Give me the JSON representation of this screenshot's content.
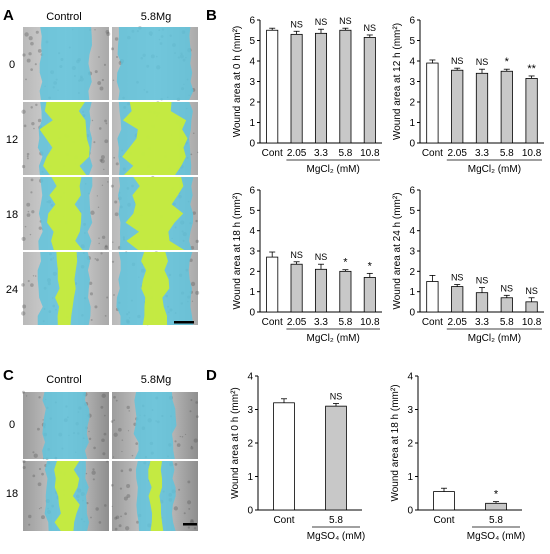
{
  "panels": {
    "A": {
      "letter": "A",
      "columns": [
        "Control",
        "5.8Mg"
      ],
      "rows": [
        "0",
        "12",
        "18",
        "24"
      ]
    },
    "B": {
      "letter": "B"
    },
    "C": {
      "letter": "C",
      "columns": [
        "Control",
        "5.8Mg"
      ],
      "rows": [
        "0",
        "18"
      ]
    },
    "D": {
      "letter": "D"
    }
  },
  "colors": {
    "gap_fill": "#5fc3dc",
    "closed_fill": "#c8ec3a",
    "control_bar": "#ffffff",
    "treated_bar": "#c8c8c8"
  },
  "chart_data": [
    {
      "id": "B1",
      "type": "bar",
      "ylabel": "Wound area at 0 h (mm²)",
      "ylim": [
        0,
        6
      ],
      "yticks": [
        0,
        1,
        2,
        3,
        4,
        5,
        6
      ],
      "categories": [
        "Cont",
        "2.05",
        "3.3",
        "5.8",
        "10.8"
      ],
      "values": [
        5.5,
        5.3,
        5.35,
        5.5,
        5.15
      ],
      "errors": [
        0.1,
        0.15,
        0.2,
        0.1,
        0.12
      ],
      "sig": [
        "",
        "NS",
        "NS",
        "NS",
        "NS"
      ],
      "group_label": "MgCl₂ (mM)"
    },
    {
      "id": "B2",
      "type": "bar",
      "ylabel": "Wound area at 12 h (mm²)",
      "ylim": [
        0,
        6
      ],
      "yticks": [
        0,
        1,
        2,
        3,
        4,
        5,
        6
      ],
      "categories": [
        "Cont",
        "2.05",
        "3.3",
        "5.8",
        "10.8"
      ],
      "values": [
        3.9,
        3.55,
        3.4,
        3.5,
        3.15
      ],
      "errors": [
        0.15,
        0.1,
        0.2,
        0.1,
        0.12
      ],
      "sig": [
        "",
        "NS",
        "NS",
        "*",
        "**"
      ],
      "group_label": "MgCl₂ (mM)"
    },
    {
      "id": "B3",
      "type": "bar",
      "ylabel": "Wound area at 18 h (mm²)",
      "ylim": [
        0,
        6
      ],
      "yticks": [
        0,
        1,
        2,
        3,
        4,
        5,
        6
      ],
      "categories": [
        "Cont",
        "2.05",
        "3.3",
        "5.8",
        "10.8"
      ],
      "values": [
        2.7,
        2.35,
        2.1,
        2.0,
        1.7
      ],
      "errors": [
        0.25,
        0.12,
        0.25,
        0.08,
        0.2
      ],
      "sig": [
        "",
        "NS",
        "NS",
        "*",
        "*"
      ],
      "group_label": "MgCl₂ (mM)"
    },
    {
      "id": "B4",
      "type": "bar",
      "ylabel": "Wound area at 24 h (mm²)",
      "ylim": [
        0,
        6
      ],
      "yticks": [
        0,
        1,
        2,
        3,
        4,
        5,
        6
      ],
      "categories": [
        "Cont",
        "2.05",
        "3.3",
        "5.8",
        "10.8"
      ],
      "values": [
        1.5,
        1.25,
        0.95,
        0.7,
        0.5
      ],
      "errors": [
        0.3,
        0.1,
        0.25,
        0.12,
        0.2
      ],
      "sig": [
        "",
        "NS",
        "NS",
        "NS",
        "NS"
      ],
      "group_label": "MgCl₂ (mM)"
    },
    {
      "id": "D1",
      "type": "bar",
      "ylabel": "Wound area at 0 h (mm²)",
      "ylim": [
        0,
        4
      ],
      "yticks": [
        0,
        1,
        2,
        3,
        4
      ],
      "categories": [
        "Cont",
        "5.8"
      ],
      "values": [
        3.2,
        3.1
      ],
      "errors": [
        0.12,
        0.08
      ],
      "sig": [
        "",
        "NS"
      ],
      "group_label": "MgSO₄ (mM)"
    },
    {
      "id": "D2",
      "type": "bar",
      "ylabel": "Wound area at 18 h (mm²)",
      "ylim": [
        0,
        4
      ],
      "yticks": [
        0,
        1,
        2,
        3,
        4
      ],
      "categories": [
        "Cont",
        "5.8"
      ],
      "values": [
        0.55,
        0.2
      ],
      "errors": [
        0.1,
        0.05
      ],
      "sig": [
        "",
        "*"
      ],
      "group_label": "MgSO₄ (mM)"
    }
  ]
}
